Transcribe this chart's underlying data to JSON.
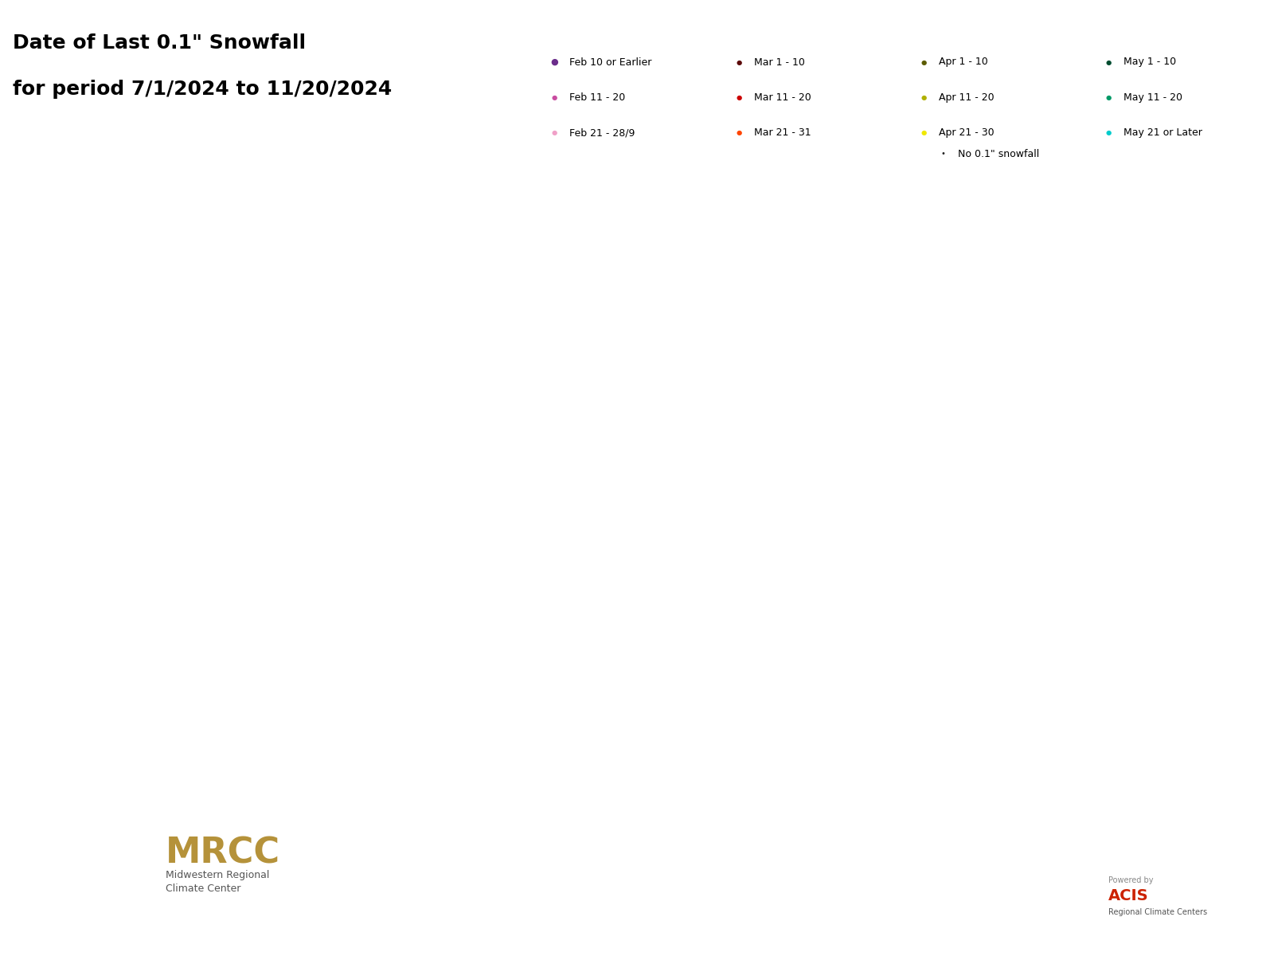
{
  "title_line1": "Date of Last 0.1\" Snowfall",
  "title_line2": "for period 7/1/2024 to 11/20/2024",
  "legend_categories": [
    {
      "label": "Feb 10 or Earlier",
      "color": "#6b2d8b",
      "size": 8
    },
    {
      "label": "Feb 11 - 20",
      "color": "#c94ca0",
      "size": 6
    },
    {
      "label": "Feb 21 - 28/9",
      "color": "#f0a0c8",
      "size": 6
    },
    {
      "label": "Mar 1 - 10",
      "color": "#5c0a0a",
      "size": 6
    },
    {
      "label": "Mar 11 - 20",
      "color": "#cc0000",
      "size": 6
    },
    {
      "label": "Mar 21 - 31",
      "color": "#ff4500",
      "size": 6
    },
    {
      "label": "Apr 1 - 10",
      "color": "#5c5c00",
      "size": 6
    },
    {
      "label": "Apr 11 - 20",
      "color": "#b0b000",
      "size": 6
    },
    {
      "label": "Apr 21 - 30",
      "color": "#f0e800",
      "size": 6
    },
    {
      "label": "May 1 - 10",
      "color": "#004d30",
      "size": 6
    },
    {
      "label": "May 11 - 20",
      "color": "#009966",
      "size": 6
    },
    {
      "label": "May 21 or Later",
      "color": "#00cccc",
      "size": 6
    },
    {
      "label": "No 0.1\" snowfall",
      "color": "#222222",
      "size": 2
    }
  ],
  "map_xlim": [
    -97.5,
    -80.5
  ],
  "map_ylim": [
    36.5,
    49.5
  ],
  "figsize": [
    16,
    12
  ],
  "dpi": 100
}
